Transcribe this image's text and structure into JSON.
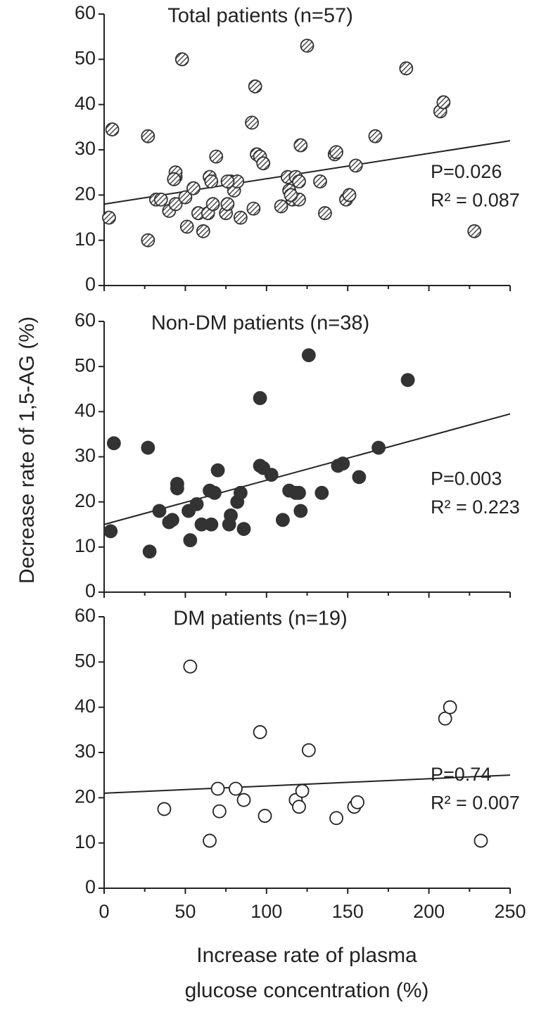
{
  "figure": {
    "ylabel": "Decrease  rate of 1,5-AG    (%)",
    "xlabel": [
      "Increase rate of plasma",
      "glucose concentration  (%)"
    ]
  },
  "chart_data": [
    {
      "type": "scatter",
      "title": "Total patients  (n=57)",
      "marker": "hatched",
      "x": [
        3,
        5,
        27,
        27,
        32,
        35,
        40,
        44,
        44,
        44,
        48,
        50,
        51,
        55,
        58,
        61,
        64,
        65,
        66,
        67,
        69,
        75,
        76,
        78,
        80,
        82,
        84,
        91,
        92,
        93,
        94,
        96,
        98,
        109,
        113,
        114,
        116,
        118,
        120,
        120,
        121,
        125,
        133,
        136,
        142,
        143,
        149,
        151,
        155,
        167,
        186,
        207,
        209,
        228,
        76,
        43,
        115
      ],
      "values": [
        15,
        34.5,
        33,
        10,
        19,
        19,
        16.5,
        18,
        24,
        25,
        50,
        19.5,
        13,
        21.5,
        16,
        12,
        16,
        24,
        23,
        18,
        28.5,
        16,
        18,
        23,
        21,
        23,
        15,
        36,
        17,
        44,
        29,
        28.5,
        27,
        17.5,
        24,
        21,
        19,
        24,
        23,
        19,
        31,
        53,
        23,
        16,
        29,
        29.5,
        19,
        20,
        26.5,
        33,
        48,
        38.5,
        40.5,
        12,
        23,
        23.5,
        20
      ],
      "fit_line": {
        "x": [
          0,
          250
        ],
        "y": [
          18,
          32
        ]
      },
      "annotations": [
        "P=0.026",
        "R² = 0.087"
      ],
      "xlim": [
        0,
        250
      ],
      "ylim": [
        0,
        60
      ],
      "xticks": [
        0,
        50,
        100,
        150,
        200,
        250
      ],
      "yticks": [
        0,
        10,
        20,
        30,
        40,
        50,
        60
      ],
      "show_xtick_labels": false
    },
    {
      "type": "scatter",
      "title": "Non-DM patients  (n=38)",
      "marker": "filled",
      "color": "#333333",
      "x": [
        4,
        6,
        27,
        28,
        34,
        40,
        42,
        45,
        45,
        52,
        53,
        57,
        60,
        65,
        66,
        68,
        70,
        77,
        78,
        82,
        84,
        86,
        96,
        96,
        98,
        103,
        110,
        114,
        118,
        120,
        121,
        134,
        144,
        147,
        157,
        169,
        126,
        187
      ],
      "values": [
        13.5,
        33,
        32,
        9,
        18,
        15.5,
        16,
        23,
        24,
        18,
        11.5,
        19.5,
        15,
        22.5,
        15,
        22,
        27,
        15,
        17,
        20,
        22,
        14,
        28,
        43,
        27.5,
        26,
        16,
        22.5,
        22,
        22,
        18,
        22,
        28,
        28.5,
        25.5,
        32,
        52.5,
        47
      ],
      "fit_line": {
        "x": [
          0,
          250
        ],
        "y": [
          15,
          39.5
        ]
      },
      "annotations": [
        "P=0.003",
        "R² = 0.223"
      ],
      "xlim": [
        0,
        250
      ],
      "ylim": [
        0,
        60
      ],
      "xticks": [
        0,
        50,
        100,
        150,
        200,
        250
      ],
      "yticks": [
        0,
        10,
        20,
        30,
        40,
        50,
        60
      ],
      "show_xtick_labels": false
    },
    {
      "type": "scatter",
      "title": "DM patients    (n=19)",
      "marker": "open",
      "x": [
        37,
        53,
        65,
        70,
        71,
        81,
        86,
        96,
        99,
        118,
        120,
        122,
        126,
        143,
        154,
        156,
        210,
        213,
        232
      ],
      "values": [
        17.5,
        49,
        10.5,
        22,
        17,
        22,
        19.5,
        34.5,
        16,
        19.5,
        18,
        21.5,
        30.5,
        15.5,
        18,
        19,
        37.5,
        40,
        10.5
      ],
      "fit_line": {
        "x": [
          0,
          250
        ],
        "y": [
          21,
          25
        ]
      },
      "annotations": [
        "P=0.74",
        "R² = 0.007"
      ],
      "xlim": [
        0,
        250
      ],
      "ylim": [
        0,
        60
      ],
      "xticks": [
        0,
        50,
        100,
        150,
        200,
        250
      ],
      "yticks": [
        0,
        10,
        20,
        30,
        40,
        50,
        60
      ],
      "show_xtick_labels": true
    }
  ]
}
